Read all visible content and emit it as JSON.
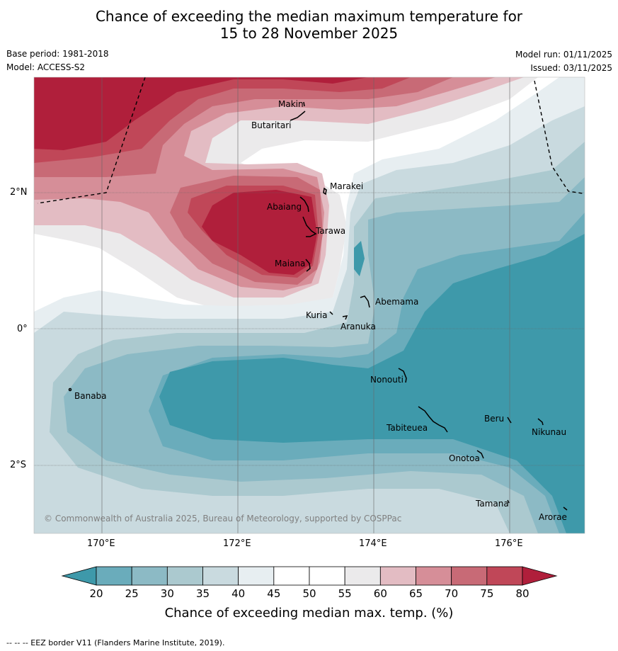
{
  "title_line1": "Chance of exceeding the median maximum temperature for",
  "title_line2": "15 to 28 November 2025",
  "base_period": "Base period: 1981-2018",
  "model": "Model: ACCESS-S2",
  "model_run": "Model run: 01/11/2025",
  "issued": "Issued: 03/11/2025",
  "lat_ticks": [
    "2°N",
    "0°",
    "2°S"
  ],
  "lon_ticks": [
    "170°E",
    "172°E",
    "174°E",
    "176°E"
  ],
  "places": [
    {
      "name": "Makin"
    },
    {
      "name": "Butaritari"
    },
    {
      "name": "Marakei"
    },
    {
      "name": "Abaiang"
    },
    {
      "name": "Tarawa"
    },
    {
      "name": "Maiana"
    },
    {
      "name": "Abemama"
    },
    {
      "name": "Kuria"
    },
    {
      "name": "Aranuka"
    },
    {
      "name": "Nonouti"
    },
    {
      "name": "Banaba"
    },
    {
      "name": "Beru"
    },
    {
      "name": "Tabiteuea"
    },
    {
      "name": "Nikunau"
    },
    {
      "name": "Onotoa"
    },
    {
      "name": "Tamana"
    },
    {
      "name": "Arorae"
    }
  ],
  "copyright": "© Commonwealth of Australia 2025, Bureau of Meteorology, supported by COSPPac",
  "colorbar": {
    "ticks": [
      "20",
      "25",
      "30",
      "35",
      "40",
      "45",
      "50",
      "55",
      "60",
      "65",
      "70",
      "75",
      "80"
    ],
    "colors": [
      "#3e99aa",
      "#6aacbb",
      "#8cbac5",
      "#abc9cf",
      "#c9dadf",
      "#e7eef1",
      "#ffffff",
      "#ffffff",
      "#ebeaeb",
      "#e3bcc3",
      "#d68e98",
      "#c86a76",
      "#c04758",
      "#b01f3b"
    ],
    "label": "Chance of exceeding median max. temp. (%)"
  },
  "footnote": "--  --  -- EEZ border V11 (Flanders Marine Institute, 2019)."
}
